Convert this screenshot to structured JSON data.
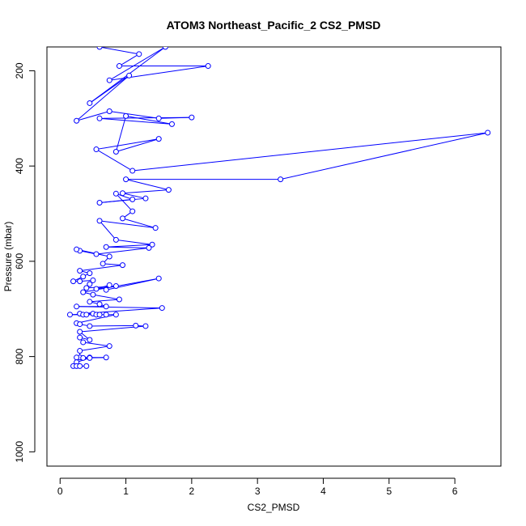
{
  "chart_data": {
    "type": "line",
    "title": "ATOM3 Northeast_Pacific_2 CS2_PMSD",
    "xlabel": "CS2_PMSD",
    "ylabel": "Pressure (mbar)",
    "xlim": [
      -0.2,
      6.7
    ],
    "ylim": [
      1030,
      150
    ],
    "y_reversed": true,
    "xticks": [
      0,
      1,
      2,
      3,
      4,
      5,
      6
    ],
    "yticks": [
      200,
      400,
      600,
      800,
      1000
    ],
    "grid": false,
    "color": "#0000ff",
    "series": [
      {
        "points": [
          [
            0.6,
            150
          ],
          [
            1.2,
            165
          ],
          [
            0.9,
            190
          ],
          [
            2.25,
            190
          ],
          [
            0.75,
            220
          ],
          [
            1.6,
            150
          ],
          [
            0.45,
            268
          ],
          [
            1.05,
            210
          ],
          [
            0.25,
            305
          ],
          [
            0.75,
            285
          ],
          [
            1.5,
            300
          ],
          [
            2.0,
            298
          ],
          [
            0.6,
            300
          ],
          [
            1.7,
            312
          ],
          [
            1.0,
            295
          ],
          [
            0.85,
            370
          ],
          [
            1.5,
            343
          ],
          [
            0.55,
            365
          ],
          [
            1.1,
            410
          ],
          [
            6.5,
            330
          ],
          [
            3.35,
            428
          ],
          [
            1.0,
            428
          ],
          [
            1.65,
            450
          ],
          [
            0.95,
            457
          ],
          [
            1.3,
            468
          ],
          [
            0.6,
            477
          ],
          [
            1.1,
            470
          ],
          [
            0.85,
            458
          ],
          [
            1.1,
            495
          ],
          [
            0.95,
            510
          ],
          [
            1.45,
            530
          ],
          [
            0.6,
            515
          ],
          [
            0.85,
            555
          ],
          [
            1.4,
            565
          ],
          [
            0.7,
            570
          ],
          [
            1.35,
            572
          ],
          [
            0.55,
            585
          ],
          [
            0.3,
            578
          ],
          [
            0.25,
            575
          ],
          [
            0.75,
            590
          ],
          [
            0.65,
            605
          ],
          [
            0.95,
            608
          ],
          [
            0.3,
            620
          ],
          [
            0.45,
            625
          ],
          [
            0.35,
            632
          ],
          [
            0.2,
            642
          ],
          [
            0.3,
            642
          ],
          [
            0.5,
            640
          ],
          [
            0.45,
            648
          ],
          [
            0.4,
            656
          ],
          [
            0.85,
            652
          ],
          [
            0.55,
            658
          ],
          [
            0.75,
            650
          ],
          [
            0.7,
            660
          ],
          [
            1.5,
            636
          ],
          [
            0.35,
            665
          ],
          [
            0.5,
            670
          ],
          [
            0.9,
            680
          ],
          [
            0.45,
            685
          ],
          [
            0.6,
            690
          ],
          [
            0.7,
            695
          ],
          [
            0.25,
            695
          ],
          [
            1.55,
            698
          ],
          [
            0.3,
            710
          ],
          [
            0.5,
            710
          ],
          [
            0.15,
            712
          ],
          [
            0.35,
            712
          ],
          [
            0.4,
            712
          ],
          [
            0.55,
            712
          ],
          [
            0.6,
            712
          ],
          [
            0.7,
            712
          ],
          [
            0.85,
            712
          ],
          [
            0.25,
            730
          ],
          [
            0.3,
            732
          ],
          [
            0.45,
            736
          ],
          [
            1.15,
            735
          ],
          [
            1.3,
            736
          ],
          [
            0.3,
            748
          ],
          [
            0.45,
            765
          ],
          [
            0.3,
            760
          ],
          [
            0.35,
            770
          ],
          [
            0.75,
            778
          ],
          [
            0.3,
            788
          ],
          [
            0.3,
            802
          ],
          [
            0.25,
            802
          ],
          [
            0.45,
            802
          ],
          [
            0.7,
            802
          ],
          [
            0.35,
            803
          ],
          [
            0.45,
            803
          ],
          [
            0.25,
            812
          ],
          [
            0.2,
            820
          ],
          [
            0.25,
            820
          ],
          [
            0.3,
            820
          ],
          [
            0.4,
            820
          ]
        ]
      }
    ]
  }
}
